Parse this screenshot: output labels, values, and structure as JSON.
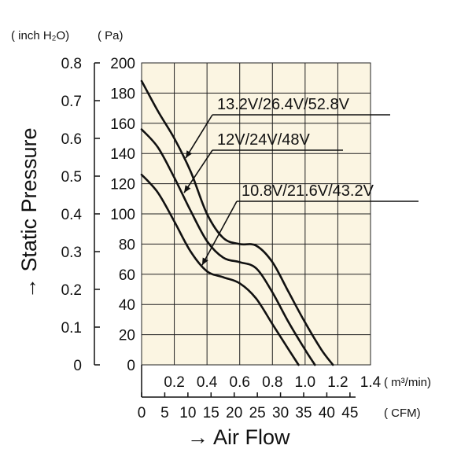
{
  "chart_data": {
    "type": "line",
    "title": "",
    "xlabel": "→ Air Flow",
    "ylabel": "→ Static Pressure",
    "x_unit_primary": "( m³/min)",
    "x_unit_secondary": "( CFM)",
    "y_unit_inch": "( inch H₂O)",
    "y_unit_pa": "( Pa)",
    "x_ticks_m3min": [
      "0.2",
      "0.4",
      "0.6",
      "0.8",
      "1.0",
      "1.2",
      "1.4"
    ],
    "x_ticks_cfm": [
      "0",
      "5",
      "10",
      "15",
      "20",
      "25",
      "30",
      "35",
      "40",
      "45"
    ],
    "y_ticks_inch": [
      "0",
      "0.1",
      "0.2",
      "0.3",
      "0.4",
      "0.5",
      "0.6",
      "0.7",
      "0.8"
    ],
    "y_ticks_pa": [
      "0",
      "20",
      "40",
      "60",
      "80",
      "100",
      "120",
      "140",
      "160",
      "180",
      "200"
    ],
    "xlim": [
      0,
      1.4
    ],
    "ylim": [
      0,
      200
    ],
    "grid": true,
    "background_color": "#fbf5e2",
    "series": [
      {
        "name": "13.2V/26.4V/52.8V",
        "x": [
          0,
          0.1,
          0.2,
          0.3,
          0.4,
          0.5,
          0.6,
          0.7,
          0.8,
          0.9,
          1.0,
          1.1,
          1.17
        ],
        "y": [
          188,
          168,
          150,
          128,
          100,
          84,
          80,
          79,
          68,
          48,
          28,
          10,
          0
        ]
      },
      {
        "name": "12V/24V/48V",
        "x": [
          0,
          0.1,
          0.2,
          0.3,
          0.4,
          0.5,
          0.6,
          0.7,
          0.8,
          0.9,
          1.0,
          1.06
        ],
        "y": [
          156,
          144,
          124,
          102,
          82,
          71,
          68,
          64,
          48,
          28,
          10,
          0
        ]
      },
      {
        "name": "10.8V/21.6V/43.2V",
        "x": [
          0,
          0.1,
          0.2,
          0.3,
          0.4,
          0.5,
          0.6,
          0.7,
          0.8,
          0.9,
          0.96
        ],
        "y": [
          126,
          114,
          95,
          75,
          62,
          58,
          54,
          44,
          27,
          10,
          0
        ]
      }
    ]
  }
}
